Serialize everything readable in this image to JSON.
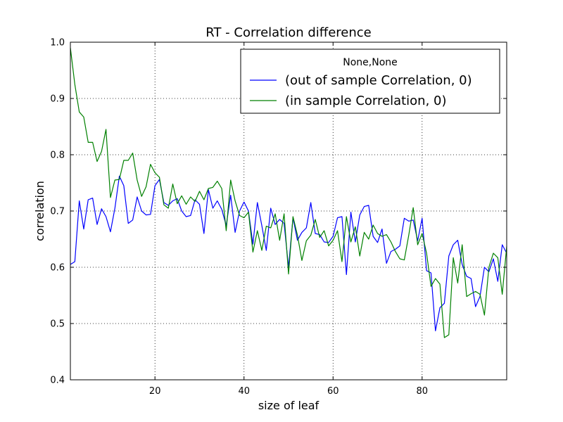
{
  "chart_data": {
    "type": "line",
    "title": "RT - Correlation difference",
    "xlabel": "size of leaf",
    "ylabel": "correlation",
    "xlim": [
      1,
      99
    ],
    "ylim": [
      0.4,
      1.0
    ],
    "xticks": [
      20,
      40,
      60,
      80
    ],
    "yticks": [
      0.4,
      0.5,
      0.6,
      0.7,
      0.8,
      0.9,
      1.0
    ],
    "xtick_labels": [
      "20",
      "40",
      "60",
      "80"
    ],
    "ytick_labels": [
      "0.4",
      "0.5",
      "0.6",
      "0.7",
      "0.8",
      "0.9",
      "1.0"
    ],
    "grid": true,
    "legend": {
      "title": "None,None",
      "placement": "top-right"
    },
    "x": [
      1,
      2,
      3,
      4,
      5,
      6,
      7,
      8,
      9,
      10,
      11,
      12,
      13,
      14,
      15,
      16,
      17,
      18,
      19,
      20,
      21,
      22,
      23,
      24,
      25,
      26,
      27,
      28,
      29,
      30,
      31,
      32,
      33,
      34,
      35,
      36,
      37,
      38,
      39,
      40,
      41,
      42,
      43,
      44,
      45,
      46,
      47,
      48,
      49,
      50,
      51,
      52,
      53,
      54,
      55,
      56,
      57,
      58,
      59,
      60,
      61,
      62,
      63,
      64,
      65,
      66,
      67,
      68,
      69,
      70,
      71,
      72,
      73,
      74,
      75,
      76,
      77,
      78,
      79,
      80,
      81,
      82,
      83,
      84,
      85,
      86,
      87,
      88,
      89,
      90,
      91,
      92,
      93,
      94,
      95,
      96,
      97,
      98,
      99
    ],
    "series": [
      {
        "name": "(out of sample Correlation, 0)",
        "color": "#0000ff",
        "values": [
          0.605,
          0.61,
          0.718,
          0.668,
          0.72,
          0.723,
          0.676,
          0.704,
          0.69,
          0.663,
          0.705,
          0.762,
          0.745,
          0.678,
          0.684,
          0.725,
          0.7,
          0.693,
          0.694,
          0.745,
          0.756,
          0.715,
          0.71,
          0.718,
          0.722,
          0.7,
          0.69,
          0.692,
          0.72,
          0.712,
          0.66,
          0.738,
          0.705,
          0.718,
          0.703,
          0.674,
          0.728,
          0.662,
          0.7,
          0.716,
          0.7,
          0.641,
          0.715,
          0.674,
          0.63,
          0.705,
          0.676,
          0.685,
          0.678,
          0.6,
          0.688,
          0.648,
          0.662,
          0.67,
          0.715,
          0.66,
          0.658,
          0.645,
          0.644,
          0.655,
          0.688,
          0.69,
          0.587,
          0.698,
          0.645,
          0.693,
          0.708,
          0.71,
          0.655,
          0.644,
          0.668,
          0.607,
          0.628,
          0.632,
          0.638,
          0.687,
          0.682,
          0.684,
          0.647,
          0.687,
          0.594,
          0.59,
          0.487,
          0.528,
          0.536,
          0.62,
          0.64,
          0.648,
          0.605,
          0.584,
          0.58,
          0.53,
          0.548,
          0.6,
          0.592,
          0.615,
          0.575,
          0.64,
          0.625
        ]
      },
      {
        "name": "(in sample Correlation, 0)",
        "color": "#008000",
        "values": [
          0.99,
          0.925,
          0.876,
          0.867,
          0.822,
          0.822,
          0.788,
          0.806,
          0.845,
          0.724,
          0.755,
          0.756,
          0.79,
          0.79,
          0.803,
          0.755,
          0.726,
          0.743,
          0.783,
          0.768,
          0.76,
          0.711,
          0.705,
          0.748,
          0.713,
          0.727,
          0.712,
          0.725,
          0.717,
          0.735,
          0.72,
          0.74,
          0.742,
          0.753,
          0.74,
          0.665,
          0.755,
          0.718,
          0.692,
          0.688,
          0.698,
          0.627,
          0.665,
          0.63,
          0.673,
          0.67,
          0.695,
          0.648,
          0.695,
          0.588,
          0.69,
          0.657,
          0.612,
          0.647,
          0.657,
          0.685,
          0.653,
          0.665,
          0.638,
          0.648,
          0.665,
          0.61,
          0.69,
          0.645,
          0.672,
          0.62,
          0.662,
          0.65,
          0.675,
          0.66,
          0.655,
          0.658,
          0.645,
          0.628,
          0.615,
          0.613,
          0.657,
          0.706,
          0.64,
          0.66,
          0.625,
          0.566,
          0.58,
          0.57,
          0.475,
          0.48,
          0.617,
          0.572,
          0.64,
          0.548,
          0.553,
          0.557,
          0.552,
          0.515,
          0.6,
          0.625,
          0.617,
          0.552,
          0.637
        ]
      }
    ]
  }
}
